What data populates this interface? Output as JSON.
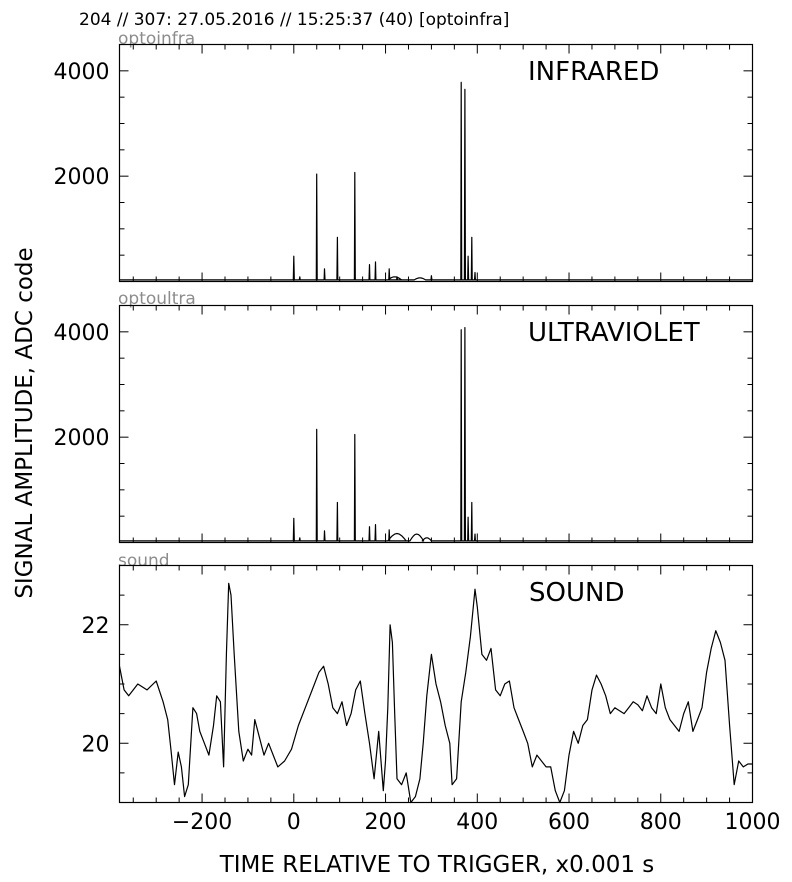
{
  "figure": {
    "suptitle": "204 // 307:   27.05.2016 // 15:25:37 (40)  [optoinfra]",
    "ylabel": "SIGNAL AMPLITUDE,  ADC code",
    "xlabel": "TIME RELATIVE TO TRIGGER,   x0.001 s",
    "line_color": "#000000",
    "corner_label_color": "#8c8c8c"
  },
  "chart_data": [
    {
      "type": "line",
      "channel": "optoinfra",
      "panel_label": "INFRARED",
      "xlim": [
        -380,
        1000
      ],
      "ylim": [
        0,
        4500
      ],
      "yticks": [
        2000,
        4000
      ],
      "yminor": 500,
      "grid": false,
      "baseline": 30,
      "spikes": [
        {
          "x": 0,
          "y": 480
        },
        {
          "x": 13,
          "y": 90
        },
        {
          "x": 50,
          "y": 2040
        },
        {
          "x": 67,
          "y": 240
        },
        {
          "x": 95,
          "y": 840
        },
        {
          "x": 133,
          "y": 2070
        },
        {
          "x": 165,
          "y": 320
        },
        {
          "x": 178,
          "y": 370
        },
        {
          "x": 208,
          "y": 240
        },
        {
          "x": 225,
          "y": 90
        },
        {
          "x": 300,
          "y": 110
        },
        {
          "x": 365,
          "y": 3780
        },
        {
          "x": 373,
          "y": 3650
        },
        {
          "x": 380,
          "y": 480
        },
        {
          "x": 388,
          "y": 840
        },
        {
          "x": 395,
          "y": 170
        }
      ],
      "humps": [
        {
          "x": 220,
          "y": 60,
          "w": 30
        },
        {
          "x": 275,
          "y": 40,
          "w": 25
        }
      ]
    },
    {
      "type": "line",
      "channel": "optoultra",
      "panel_label": "ULTRAVIOLET",
      "xlim": [
        -380,
        1000
      ],
      "ylim": [
        0,
        4500
      ],
      "yticks": [
        2000,
        4000
      ],
      "yminor": 500,
      "grid": false,
      "baseline": 30,
      "spikes": [
        {
          "x": 0,
          "y": 460
        },
        {
          "x": 13,
          "y": 90
        },
        {
          "x": 50,
          "y": 2150
        },
        {
          "x": 67,
          "y": 220
        },
        {
          "x": 95,
          "y": 760
        },
        {
          "x": 133,
          "y": 2050
        },
        {
          "x": 165,
          "y": 300
        },
        {
          "x": 178,
          "y": 340
        },
        {
          "x": 208,
          "y": 240
        },
        {
          "x": 365,
          "y": 4040
        },
        {
          "x": 373,
          "y": 4080
        },
        {
          "x": 380,
          "y": 480
        },
        {
          "x": 388,
          "y": 760
        },
        {
          "x": 395,
          "y": 160
        }
      ],
      "humps": [
        {
          "x": 225,
          "y": 140,
          "w": 40
        },
        {
          "x": 268,
          "y": 130,
          "w": 30
        },
        {
          "x": 290,
          "y": 60,
          "w": 20
        }
      ]
    },
    {
      "type": "line",
      "channel": "sound",
      "panel_label": "SOUND",
      "xlim": [
        -380,
        1000
      ],
      "ylim": [
        19,
        23
      ],
      "yticks": [
        20,
        22
      ],
      "yminor": 0.5,
      "grid": false,
      "x": [
        -380,
        -370,
        -360,
        -340,
        -320,
        -300,
        -285,
        -275,
        -268,
        -260,
        -252,
        -245,
        -238,
        -230,
        -220,
        -212,
        -205,
        -195,
        -185,
        -175,
        -168,
        -160,
        -153,
        -147,
        -142,
        -137,
        -130,
        -120,
        -110,
        -100,
        -92,
        -85,
        -75,
        -65,
        -55,
        -45,
        -35,
        -20,
        -5,
        10,
        25,
        40,
        55,
        65,
        75,
        85,
        95,
        105,
        115,
        125,
        135,
        145,
        155,
        165,
        175,
        185,
        195,
        200,
        205,
        210,
        215,
        220,
        225,
        235,
        245,
        255,
        265,
        275,
        282,
        290,
        300,
        310,
        320,
        330,
        340,
        345,
        355,
        365,
        375,
        385,
        395,
        400,
        410,
        420,
        430,
        440,
        450,
        460,
        470,
        480,
        490,
        500,
        510,
        520,
        530,
        540,
        550,
        560,
        570,
        580,
        590,
        600,
        610,
        620,
        630,
        640,
        650,
        660,
        670,
        680,
        690,
        700,
        710,
        720,
        730,
        740,
        750,
        760,
        770,
        780,
        790,
        800,
        810,
        820,
        830,
        840,
        850,
        860,
        870,
        880,
        890,
        900,
        910,
        920,
        930,
        940,
        950,
        960,
        970,
        980,
        990,
        1000
      ],
      "values": [
        21.3,
        20.9,
        20.8,
        21.0,
        20.9,
        21.05,
        20.7,
        20.4,
        19.9,
        19.3,
        19.85,
        19.6,
        19.1,
        19.3,
        20.6,
        20.5,
        20.2,
        20.0,
        19.8,
        20.3,
        20.8,
        20.7,
        19.6,
        21.5,
        22.7,
        22.5,
        21.5,
        20.2,
        19.7,
        19.9,
        19.8,
        20.4,
        20.1,
        19.8,
        20.0,
        19.8,
        19.6,
        19.7,
        19.9,
        20.3,
        20.6,
        20.9,
        21.2,
        21.3,
        21.0,
        20.6,
        20.5,
        20.7,
        20.3,
        20.5,
        20.9,
        21.05,
        20.5,
        20.0,
        19.4,
        20.2,
        19.2,
        19.7,
        20.6,
        22.0,
        21.7,
        20.5,
        19.4,
        19.3,
        19.5,
        19.0,
        19.1,
        19.4,
        20.0,
        20.8,
        21.5,
        21.0,
        20.7,
        20.3,
        20.0,
        19.3,
        19.4,
        20.7,
        21.2,
        21.8,
        22.6,
        22.3,
        21.5,
        21.4,
        21.6,
        20.9,
        20.8,
        21.0,
        21.05,
        20.6,
        20.4,
        20.2,
        20.0,
        19.6,
        19.8,
        19.7,
        19.6,
        19.6,
        19.2,
        19.0,
        19.2,
        19.8,
        20.2,
        20.0,
        20.3,
        20.4,
        20.9,
        21.15,
        21.0,
        20.8,
        20.5,
        20.6,
        20.55,
        20.5,
        20.6,
        20.7,
        20.65,
        20.55,
        20.8,
        20.6,
        20.5,
        21.0,
        20.6,
        20.4,
        20.3,
        20.2,
        20.5,
        20.7,
        20.2,
        20.4,
        20.6,
        21.2,
        21.6,
        21.9,
        21.7,
        21.4,
        20.3,
        19.3,
        19.7,
        19.6,
        19.65,
        19.65
      ]
    }
  ],
  "xaxis": {
    "ticks": [
      -200,
      0,
      200,
      400,
      600,
      800,
      1000
    ],
    "tick_labels": [
      "−200",
      "0",
      "200",
      "400",
      "600",
      "800",
      "1000"
    ],
    "minor": 50
  }
}
